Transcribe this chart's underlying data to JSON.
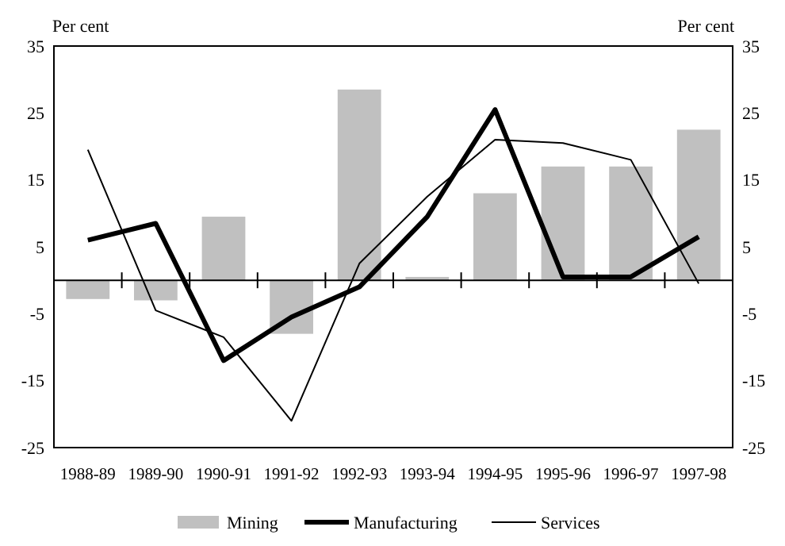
{
  "chart_data": {
    "type": "bar",
    "ylabel": "Per cent",
    "y2label": "Per cent",
    "categories": [
      "1988-89",
      "1989-90",
      "1990-91",
      "1991-92",
      "1992-93",
      "1993-94",
      "1994-95",
      "1995-96",
      "1996-97",
      "1997-98"
    ],
    "series": [
      {
        "name": "Mining",
        "color": "#c0c0c0",
        "values": [
          -2.8,
          -3,
          9.5,
          -8,
          28.5,
          0.5,
          13,
          17,
          17,
          22.5
        ]
      },
      {
        "name": "Manufacturing",
        "type": "line",
        "color": "#000000",
        "values": [
          6,
          8.5,
          -12,
          -5.5,
          -1,
          9.5,
          25.5,
          0.5,
          0.5,
          6.5
        ]
      },
      {
        "name": "Services",
        "type": "line",
        "color": "#000000",
        "values": [
          19.5,
          -4.5,
          -8.5,
          -21,
          2.5,
          12.5,
          21,
          20.5,
          18,
          -0.5
        ]
      }
    ],
    "ylim": [
      -25,
      35
    ],
    "yticks": [
      -25,
      -15,
      -5,
      5,
      15,
      25,
      35
    ],
    "y2lim": [
      -25,
      35
    ],
    "y2ticks": [
      -25,
      -15,
      -5,
      5,
      15,
      25,
      35
    ],
    "grid": false,
    "legend": "bottom",
    "marker": "none",
    "line_style": "solid"
  }
}
